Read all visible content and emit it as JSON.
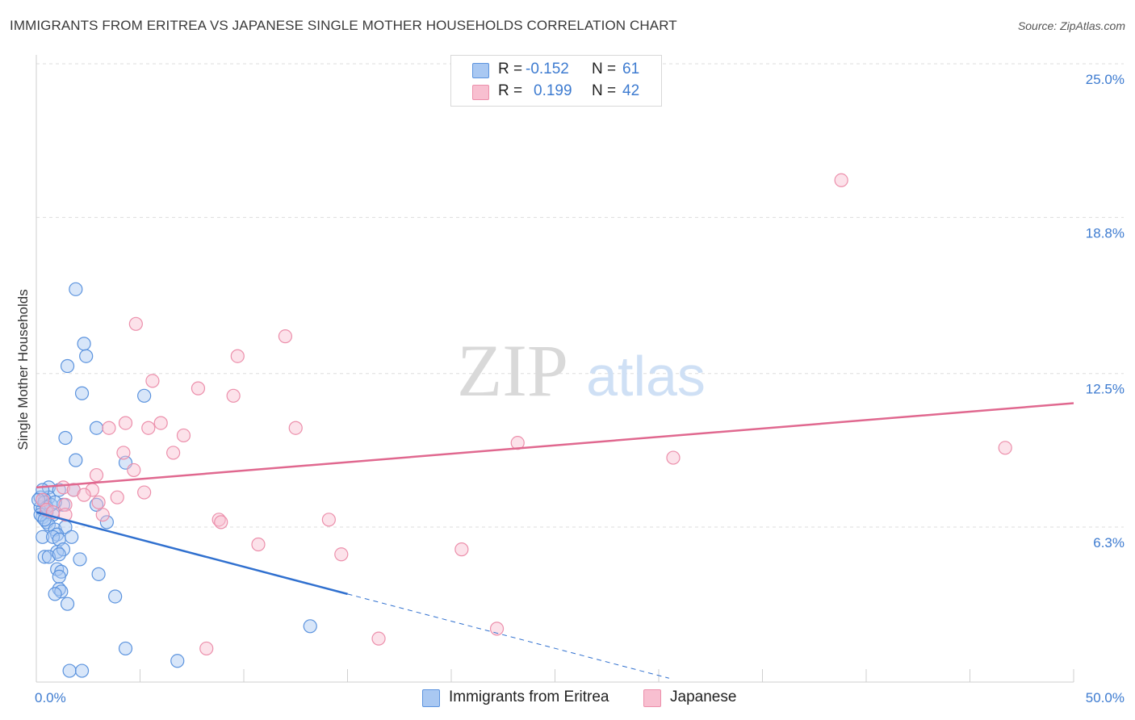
{
  "title": "IMMIGRANTS FROM ERITREA VS JAPANESE SINGLE MOTHER HOUSEHOLDS CORRELATION CHART",
  "source": "Source: ZipAtlas.com",
  "watermark": {
    "zip": "ZIP",
    "atlas": "atlas"
  },
  "legend_top": [
    {
      "r_label": "R =",
      "r_value": "-0.152",
      "n_label": "N =",
      "n_value": "61"
    },
    {
      "r_label": "R =",
      "r_value": "0.199",
      "n_label": "N =",
      "n_value": "42"
    }
  ],
  "legend_bottom": [
    {
      "label": "Immigrants from Eritrea"
    },
    {
      "label": "Japanese"
    }
  ],
  "colors": {
    "eritrea_fill": "#a9c8f2",
    "eritrea_stroke": "#5b93de",
    "eritrea_line": "#3070cf",
    "japanese_fill": "#f8bfd0",
    "japanese_stroke": "#ec8fab",
    "japanese_line": "#e0688f",
    "tick_text": "#3d7bd0",
    "grid": "#dddddd"
  },
  "chart_data": {
    "type": "scatter",
    "title": "IMMIGRANTS FROM ERITREA VS JAPANESE SINGLE MOTHER HOUSEHOLDS CORRELATION CHART",
    "xlabel": "",
    "ylabel": "Single Mother Households",
    "xlim": [
      0,
      50
    ],
    "ylim": [
      0,
      26
    ],
    "x_tick_labels": [
      "0.0%",
      "50.0%"
    ],
    "y_ticks": [
      6.3,
      12.5,
      18.8,
      25.0
    ],
    "y_tick_labels": [
      "6.3%",
      "12.5%",
      "18.8%",
      "25.0%"
    ],
    "grid": "horizontal dashed",
    "legend": "top-center",
    "series": [
      {
        "name": "Immigrants from Eritrea",
        "points": [
          [
            1.9,
            15.9
          ],
          [
            2.3,
            13.7
          ],
          [
            2.4,
            13.2
          ],
          [
            1.5,
            12.8
          ],
          [
            2.2,
            11.7
          ],
          [
            5.2,
            11.6
          ],
          [
            2.9,
            10.3
          ],
          [
            1.4,
            9.9
          ],
          [
            1.9,
            9.0
          ],
          [
            4.3,
            8.9
          ],
          [
            0.6,
            7.9
          ],
          [
            0.6,
            7.5
          ],
          [
            0.4,
            7.4
          ],
          [
            0.2,
            7.1
          ],
          [
            0.3,
            7.0
          ],
          [
            0.5,
            6.9
          ],
          [
            0.8,
            6.8
          ],
          [
            0.3,
            6.7
          ],
          [
            0.5,
            6.5
          ],
          [
            0.6,
            6.4
          ],
          [
            0.2,
            7.5
          ],
          [
            0.4,
            7.3
          ],
          [
            1.1,
            7.8
          ],
          [
            0.9,
            6.2
          ],
          [
            1.4,
            6.3
          ],
          [
            1.0,
            6.0
          ],
          [
            1.8,
            7.8
          ],
          [
            1.3,
            7.2
          ],
          [
            2.9,
            7.2
          ],
          [
            3.4,
            6.5
          ],
          [
            0.3,
            5.9
          ],
          [
            0.8,
            5.9
          ],
          [
            1.1,
            5.8
          ],
          [
            1.7,
            5.9
          ],
          [
            1.0,
            5.3
          ],
          [
            1.3,
            5.4
          ],
          [
            0.4,
            5.1
          ],
          [
            0.6,
            5.1
          ],
          [
            1.1,
            5.2
          ],
          [
            2.1,
            5.0
          ],
          [
            1.0,
            4.6
          ],
          [
            1.2,
            4.5
          ],
          [
            3.0,
            4.4
          ],
          [
            1.1,
            4.3
          ],
          [
            1.1,
            3.8
          ],
          [
            1.2,
            3.7
          ],
          [
            0.9,
            3.6
          ],
          [
            3.8,
            3.5
          ],
          [
            1.5,
            3.2
          ],
          [
            13.2,
            2.3
          ],
          [
            4.3,
            1.4
          ],
          [
            6.8,
            0.9
          ],
          [
            1.6,
            0.5
          ],
          [
            2.2,
            0.5
          ],
          [
            0.2,
            6.8
          ],
          [
            0.3,
            7.8
          ],
          [
            0.7,
            7.2
          ],
          [
            0.5,
            7.1
          ],
          [
            0.4,
            6.6
          ],
          [
            0.9,
            7.3
          ],
          [
            0.1,
            7.4
          ]
        ]
      },
      {
        "name": "Japanese",
        "points": [
          [
            38.8,
            20.3
          ],
          [
            4.8,
            14.5
          ],
          [
            12.0,
            14.0
          ],
          [
            9.7,
            13.2
          ],
          [
            5.6,
            12.2
          ],
          [
            7.8,
            11.9
          ],
          [
            9.5,
            11.6
          ],
          [
            12.5,
            10.3
          ],
          [
            4.3,
            10.5
          ],
          [
            6.0,
            10.5
          ],
          [
            5.4,
            10.3
          ],
          [
            3.5,
            10.3
          ],
          [
            7.1,
            10.0
          ],
          [
            23.2,
            9.7
          ],
          [
            46.7,
            9.5
          ],
          [
            4.2,
            9.3
          ],
          [
            6.6,
            9.3
          ],
          [
            30.7,
            9.1
          ],
          [
            4.7,
            8.6
          ],
          [
            2.9,
            8.4
          ],
          [
            1.3,
            7.9
          ],
          [
            1.8,
            7.8
          ],
          [
            2.7,
            7.8
          ],
          [
            5.2,
            7.7
          ],
          [
            2.3,
            7.6
          ],
          [
            3.9,
            7.5
          ],
          [
            0.3,
            7.4
          ],
          [
            1.4,
            7.2
          ],
          [
            3.0,
            7.3
          ],
          [
            0.5,
            7.0
          ],
          [
            0.8,
            6.9
          ],
          [
            1.4,
            6.8
          ],
          [
            3.2,
            6.8
          ],
          [
            8.8,
            6.6
          ],
          [
            8.9,
            6.5
          ],
          [
            14.1,
            6.6
          ],
          [
            10.7,
            5.6
          ],
          [
            20.5,
            5.4
          ],
          [
            14.7,
            5.2
          ],
          [
            22.2,
            2.2
          ],
          [
            16.5,
            1.8
          ],
          [
            8.2,
            1.4
          ]
        ]
      }
    ],
    "trend_lines": [
      {
        "series": "Immigrants from Eritrea",
        "solid": [
          [
            0,
            6.9
          ],
          [
            15,
            3.6
          ]
        ],
        "dashed": [
          [
            15,
            3.6
          ],
          [
            30.5,
            0.2
          ]
        ]
      },
      {
        "series": "Japanese",
        "solid": [
          [
            0,
            7.9
          ],
          [
            50,
            11.3
          ]
        ]
      }
    ]
  }
}
